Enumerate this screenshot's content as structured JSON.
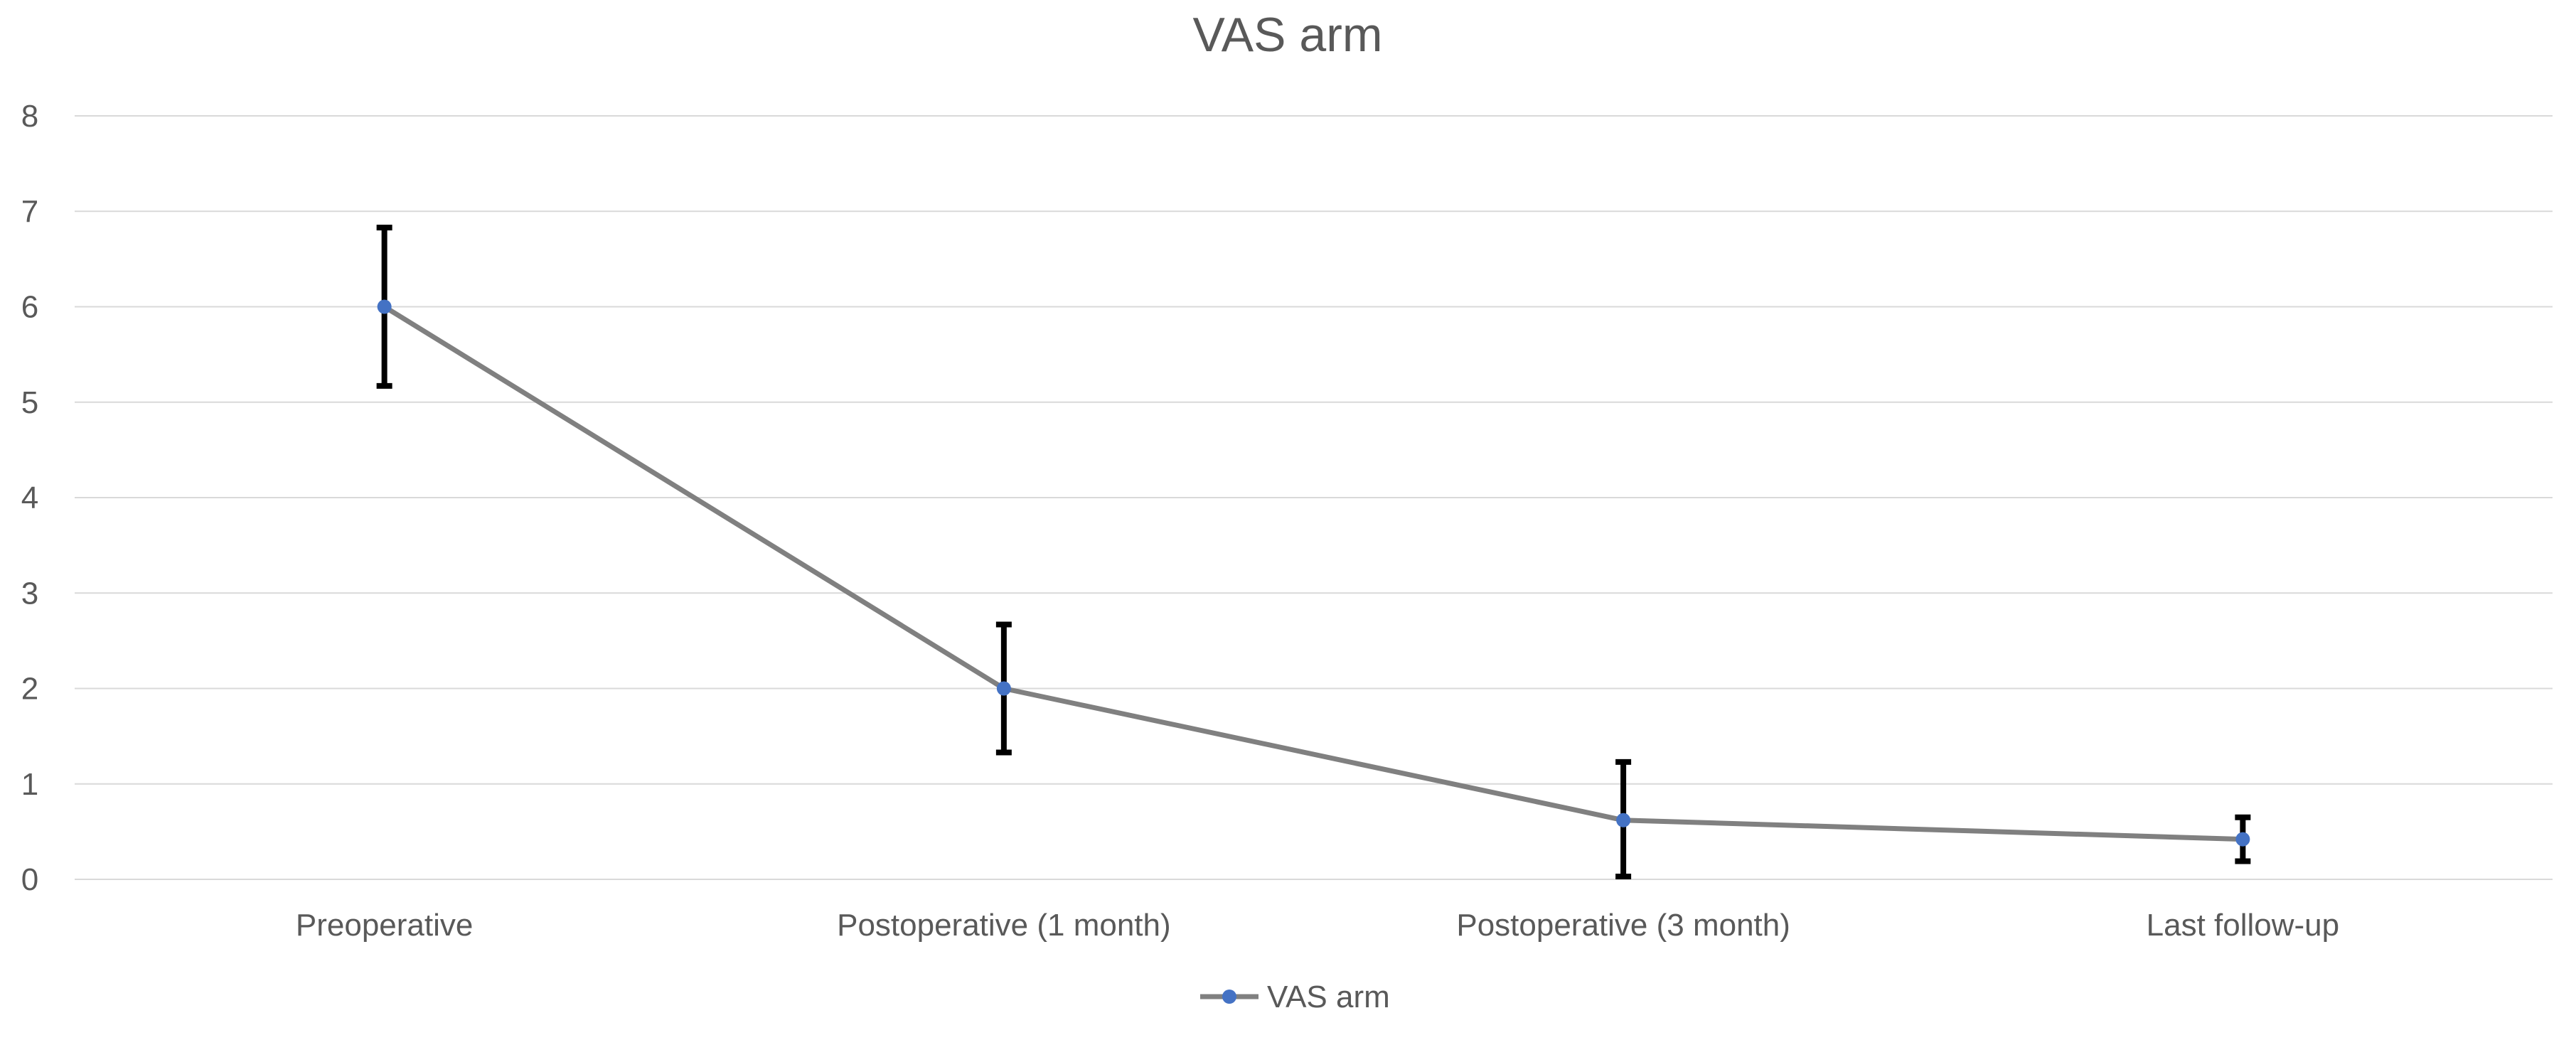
{
  "chart_data": {
    "type": "line",
    "title": "VAS arm",
    "categories": [
      "Preoperative",
      "Postoperative (1 month)",
      "Postoperative (3 month)",
      "Last follow-up"
    ],
    "series": [
      {
        "name": "VAS arm",
        "values": [
          6.0,
          2.0,
          0.62,
          0.42
        ],
        "error_low": [
          5.17,
          1.33,
          0.03,
          0.19
        ],
        "error_high": [
          6.83,
          2.67,
          1.23,
          0.65
        ],
        "line_color": "#808080",
        "marker_color": "#4472c4",
        "error_bar_color": "#000000"
      }
    ],
    "ylim": [
      0,
      8
    ],
    "yticks": [
      0,
      1,
      2,
      3,
      4,
      5,
      6,
      7,
      8
    ],
    "xlabel": "",
    "ylabel": "",
    "grid": true,
    "legend_position": "bottom-center"
  }
}
